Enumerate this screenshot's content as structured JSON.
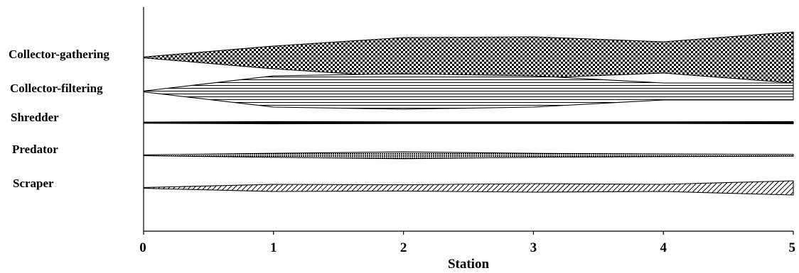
{
  "chart_data": {
    "type": "area",
    "xlabel": "Station",
    "x": [
      0,
      1,
      2,
      3,
      4,
      5
    ],
    "xlim": [
      0,
      5
    ],
    "grid": false,
    "legend": "none",
    "series": [
      {
        "name": "Collector-gathering",
        "values": [
          0.3,
          8,
          14,
          14.5,
          11,
          18
        ]
      },
      {
        "name": "Collector-filtering",
        "values": [
          0.3,
          11,
          12.5,
          11,
          6,
          6
        ]
      },
      {
        "name": "Shredder",
        "values": [
          0.4,
          0.8,
          0.6,
          0.6,
          0.6,
          0.8
        ]
      },
      {
        "name": "Predator",
        "values": [
          0.3,
          1.4,
          2.4,
          1.4,
          0.9,
          0.6
        ]
      },
      {
        "name": "Scraper",
        "values": [
          0.3,
          2.5,
          2.2,
          3,
          2.5,
          5
        ]
      }
    ]
  }
}
